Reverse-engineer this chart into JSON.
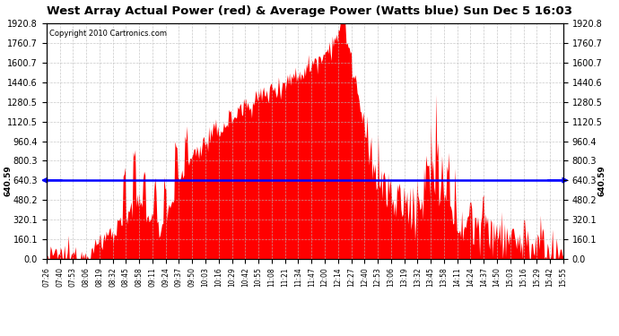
{
  "title": "West Array Actual Power (red) & Average Power (Watts blue) Sun Dec 5 16:03",
  "copyright": "Copyright 2010 Cartronics.com",
  "avg_power": 640.59,
  "yticks": [
    0.0,
    160.1,
    320.1,
    480.2,
    640.3,
    800.3,
    960.4,
    1120.5,
    1280.5,
    1440.6,
    1600.7,
    1760.7,
    1920.8
  ],
  "ymax": 1920.8,
  "bg_color": "#ffffff",
  "fill_color": "#ff0000",
  "line_color": "#0000ff",
  "grid_color": "#bbbbbb",
  "xtick_labels": [
    "07:26",
    "07:40",
    "07:53",
    "08:06",
    "08:19",
    "08:32",
    "08:45",
    "08:58",
    "09:11",
    "09:24",
    "09:37",
    "09:50",
    "10:03",
    "10:16",
    "10:29",
    "10:42",
    "10:55",
    "11:08",
    "11:21",
    "11:34",
    "11:47",
    "12:00",
    "12:14",
    "12:27",
    "12:40",
    "12:53",
    "13:06",
    "13:19",
    "13:32",
    "13:45",
    "13:58",
    "14:11",
    "14:24",
    "14:37",
    "14:50",
    "15:03",
    "15:16",
    "15:29",
    "15:42",
    "15:55"
  ]
}
